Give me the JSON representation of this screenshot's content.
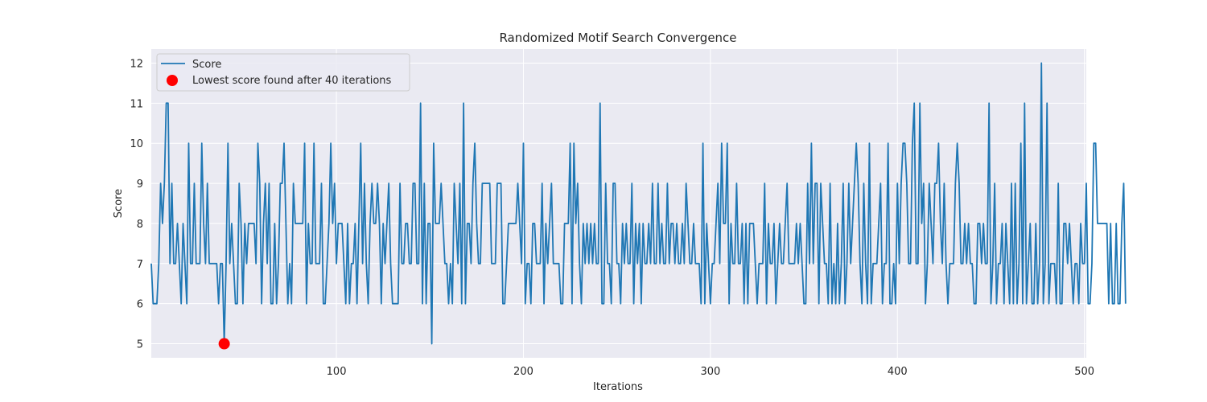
{
  "chart_data": {
    "type": "line",
    "title": "Randomized Motif Search Convergence",
    "xlabel": "Iterations",
    "ylabel": "Score",
    "xlim": [
      1,
      501
    ],
    "ylim": [
      4.65,
      12.35
    ],
    "xticks": [
      100,
      200,
      300,
      400,
      500
    ],
    "yticks": [
      5,
      6,
      7,
      8,
      9,
      10,
      11,
      12
    ],
    "grid": true,
    "legend_position": "top-left",
    "colors": {
      "line": "#1f77b4",
      "marker": "#ff0000",
      "plot_bg": "#eaeaf2",
      "grid": "#ffffff"
    },
    "series": [
      {
        "name": "Score",
        "x_start": 1,
        "values": [
          7,
          6,
          6,
          6,
          7,
          9,
          8,
          9,
          11,
          11,
          7,
          9,
          7,
          7,
          8,
          7,
          6,
          8,
          7,
          6,
          10,
          7,
          7,
          9,
          7,
          7,
          7,
          10,
          8,
          7,
          9,
          7,
          7,
          7,
          7,
          7,
          6,
          7,
          7,
          5,
          7,
          10,
          7,
          8,
          7,
          6,
          6,
          9,
          8,
          6,
          8,
          7,
          8,
          8,
          8,
          8,
          7,
          10,
          9,
          6,
          8,
          9,
          7,
          9,
          6,
          6,
          8,
          6,
          7,
          9,
          9,
          10,
          8,
          6,
          7,
          6,
          9,
          8,
          8,
          8,
          8,
          8,
          10,
          6,
          8,
          7,
          7,
          10,
          7,
          7,
          7,
          9,
          6,
          6,
          7,
          8,
          10,
          8,
          9,
          7,
          8,
          8,
          8,
          7,
          6,
          8,
          6,
          7,
          7,
          8,
          6,
          8,
          10,
          7,
          9,
          7,
          6,
          8,
          9,
          8,
          8,
          9,
          8,
          6,
          8,
          7,
          8,
          9,
          7,
          6,
          6,
          6,
          6,
          9,
          7,
          7,
          8,
          8,
          7,
          7,
          9,
          9,
          7,
          7,
          11,
          6,
          9,
          6,
          8,
          8,
          5,
          10,
          8,
          8,
          8,
          9,
          8,
          7,
          7,
          6,
          7,
          6,
          9,
          8,
          7,
          9,
          6,
          11,
          6,
          8,
          8,
          7,
          9,
          10,
          8,
          7,
          7,
          9,
          9,
          9,
          9,
          9,
          7,
          7,
          7,
          9,
          9,
          9,
          6,
          6,
          7,
          8,
          8,
          8,
          8,
          8,
          9,
          8,
          7,
          10,
          6,
          7,
          7,
          6,
          8,
          8,
          7,
          7,
          7,
          9,
          6,
          8,
          7,
          8,
          9,
          7,
          7,
          7,
          7,
          6,
          6,
          8,
          8,
          8,
          10,
          6,
          10,
          8,
          9,
          7,
          6,
          8,
          7,
          8,
          7,
          8,
          7,
          8,
          7,
          7,
          11,
          6,
          6,
          9,
          7,
          7,
          6,
          9,
          9,
          7,
          7,
          6,
          8,
          7,
          8,
          7,
          7,
          9,
          6,
          8,
          7,
          8,
          6,
          8,
          7,
          7,
          8,
          7,
          9,
          7,
          7,
          9,
          7,
          8,
          7,
          7,
          9,
          7,
          8,
          8,
          7,
          8,
          7,
          7,
          8,
          7,
          9,
          8,
          7,
          7,
          8,
          7,
          7,
          7,
          6,
          10,
          6,
          8,
          7,
          6,
          7,
          7,
          8,
          9,
          7,
          10,
          8,
          8,
          10,
          6,
          8,
          7,
          7,
          9,
          7,
          7,
          8,
          6,
          8,
          6,
          8,
          8,
          8,
          7,
          6,
          7,
          7,
          7,
          9,
          6,
          8,
          7,
          7,
          8,
          6,
          7,
          8,
          7,
          7,
          8,
          9,
          7,
          7,
          7,
          7,
          8,
          7,
          8,
          7,
          6,
          6,
          9,
          7,
          10,
          7,
          9,
          9,
          6,
          9,
          8,
          7,
          7,
          6,
          9,
          6,
          7,
          6,
          8,
          6,
          7,
          9,
          6,
          7,
          9,
          7,
          8,
          9,
          10,
          9,
          7,
          6,
          9,
          7,
          6,
          10,
          6,
          7,
          7,
          7,
          8,
          9,
          6,
          7,
          7,
          10,
          6,
          6,
          7,
          6,
          9,
          7,
          9,
          10,
          10,
          9,
          7,
          7,
          10,
          11,
          7,
          7,
          11,
          8,
          9,
          6,
          7,
          9,
          8,
          7,
          9,
          9,
          10,
          8,
          7,
          9,
          7,
          6,
          7,
          7,
          7,
          9,
          10,
          9,
          7,
          7,
          8,
          7,
          8,
          7,
          7,
          6,
          6,
          8,
          8,
          7,
          8,
          7,
          7,
          11,
          6,
          7,
          9,
          6,
          7,
          7,
          8,
          6,
          8,
          7,
          6,
          9,
          6,
          9,
          6,
          7,
          10,
          6,
          11,
          6,
          7,
          8,
          6,
          6,
          8,
          6,
          7,
          12,
          6,
          7,
          11,
          6,
          7,
          7,
          7,
          6,
          9,
          6,
          6,
          8,
          8,
          7,
          8,
          7,
          6,
          7,
          7,
          6,
          8,
          7,
          7,
          9,
          6,
          6,
          7,
          10,
          10,
          8,
          8,
          8,
          8,
          8,
          8,
          6,
          8,
          6,
          6,
          8,
          6,
          6,
          8,
          9,
          6
        ]
      }
    ],
    "highlight": {
      "label": "Lowest score found after 40 iterations",
      "x": 40,
      "y": 5
    }
  }
}
